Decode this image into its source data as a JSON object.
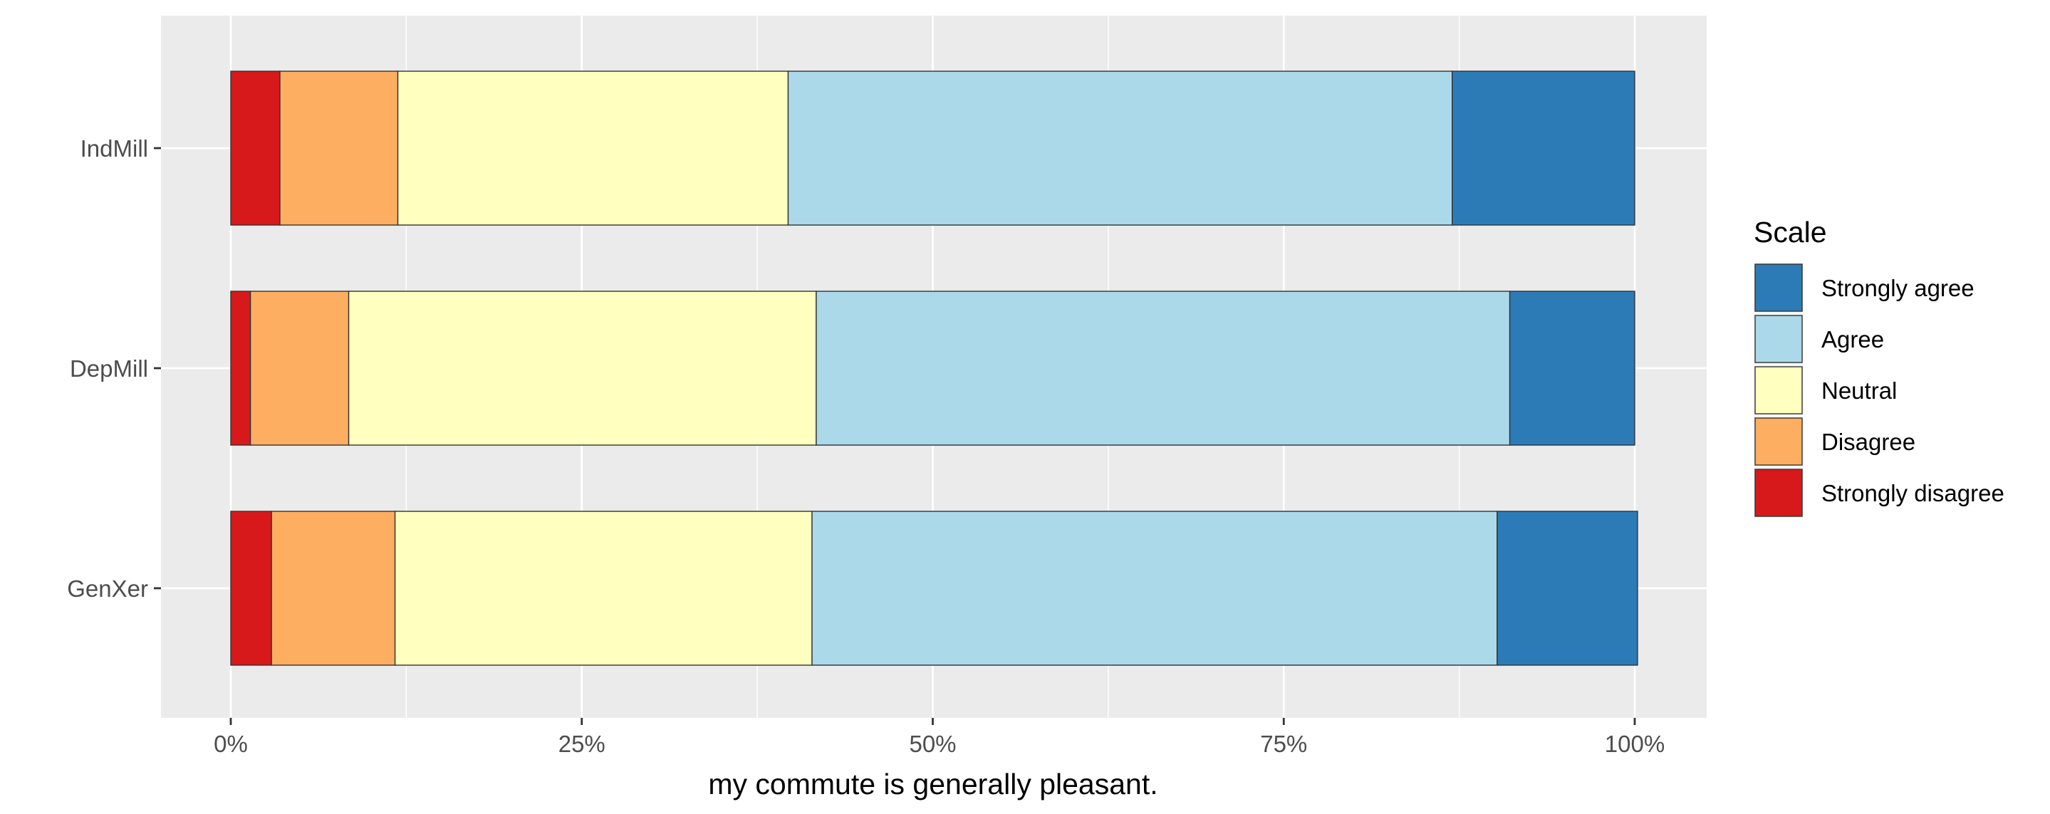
{
  "chart_data": {
    "type": "bar",
    "orientation": "horizontal",
    "stacked": "percent",
    "categories": [
      "IndMill",
      "DepMill",
      "GenXer"
    ],
    "xlabel": "my commute is generally pleasant.",
    "ylabel": "",
    "xlim": [
      0,
      1
    ],
    "x_ticks": [
      "0%",
      "25%",
      "50%",
      "75%",
      "100%"
    ],
    "grid": true,
    "legend": {
      "title": "Scale",
      "position": "right",
      "entries": [
        "Strongly agree",
        "Agree",
        "Neutral",
        "Disagree",
        "Strongly disagree"
      ]
    },
    "series": [
      {
        "name": "Strongly disagree",
        "color": "#d7191c",
        "values": [
          0.035,
          0.014,
          0.029
        ]
      },
      {
        "name": "Disagree",
        "color": "#fdae61",
        "values": [
          0.084,
          0.07,
          0.088
        ]
      },
      {
        "name": "Neutral",
        "color": "#ffffbf",
        "values": [
          0.278,
          0.333,
          0.297
        ]
      },
      {
        "name": "Agree",
        "color": "#abd9e9",
        "values": [
          0.473,
          0.494,
          0.488
        ]
      },
      {
        "name": "Strongly agree",
        "color": "#2c7bb6",
        "values": [
          0.13,
          0.089,
          0.1
        ]
      }
    ]
  }
}
